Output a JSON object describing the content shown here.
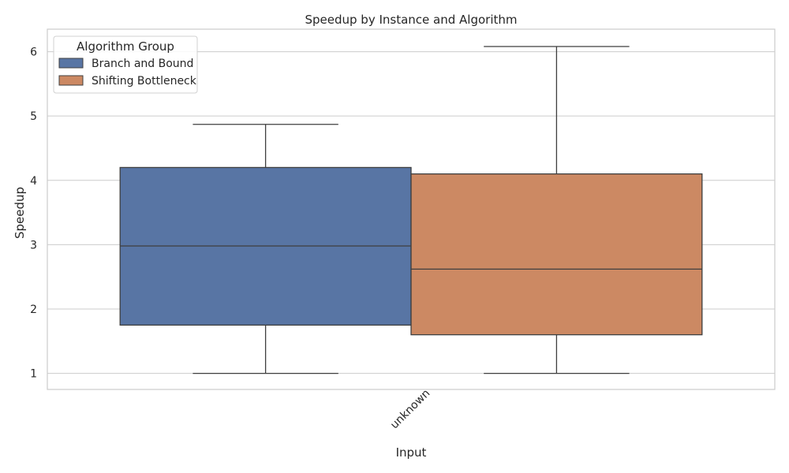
{
  "chart_data": {
    "type": "box",
    "title": "Speedup by Instance and Algorithm",
    "xlabel": "Input",
    "ylabel": "Speedup",
    "categories": [
      "unknown"
    ],
    "ylim": [
      0.75,
      6.35
    ],
    "yticks": [
      1,
      2,
      3,
      4,
      5,
      6
    ],
    "grid": true,
    "legend": {
      "title": "Algorithm Group",
      "placement": "top-left"
    },
    "series": [
      {
        "name": "Branch and Bound",
        "color": "#5875a4",
        "boxes": [
          {
            "category": "unknown",
            "whisker_low": 1.0,
            "q1": 1.75,
            "median": 2.98,
            "q3": 4.2,
            "whisker_high": 4.87
          }
        ]
      },
      {
        "name": "Shifting Bottleneck",
        "color": "#cc8963",
        "boxes": [
          {
            "category": "unknown",
            "whisker_low": 1.0,
            "q1": 1.6,
            "median": 2.62,
            "q3": 4.1,
            "whisker_high": 6.08
          }
        ]
      }
    ]
  }
}
